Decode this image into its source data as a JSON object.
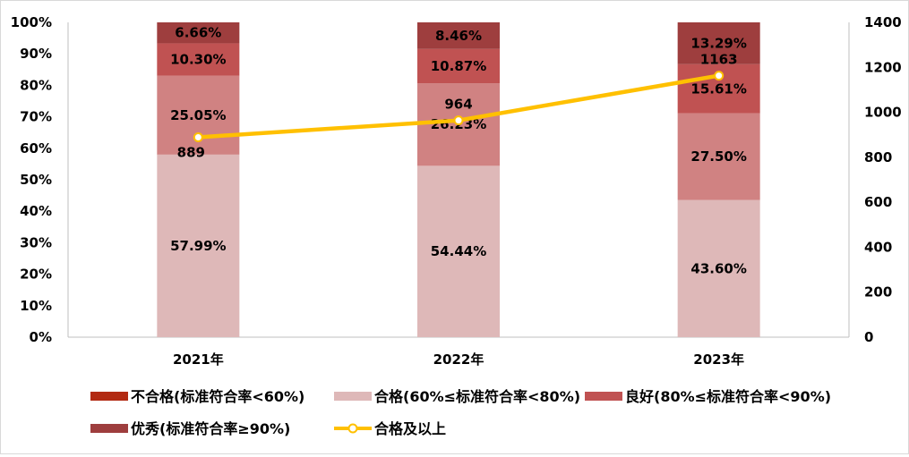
{
  "chart_data": {
    "type": "bar",
    "stacked": true,
    "categories": [
      "2021年",
      "2022年",
      "2023年"
    ],
    "y_left": {
      "ticks": [
        "0%",
        "10%",
        "20%",
        "30%",
        "40%",
        "50%",
        "60%",
        "70%",
        "80%",
        "90%",
        "100%"
      ],
      "range": [
        0,
        100
      ]
    },
    "y_right": {
      "ticks": [
        "0",
        "200",
        "400",
        "600",
        "800",
        "1000",
        "1200",
        "1400"
      ],
      "range": [
        0,
        1400
      ]
    },
    "series": [
      {
        "name": "不合格(标准符合率<60%)",
        "type": "bar",
        "color": "#b22a12",
        "values": [
          0,
          0,
          0
        ],
        "labels": [
          "",
          "",
          ""
        ]
      },
      {
        "name": "合格(60%≤标准符合率<80%)",
        "type": "bar",
        "color": "#deb8b8",
        "values": [
          57.99,
          54.44,
          43.6
        ],
        "labels": [
          "57.99%",
          "54.44%",
          "43.60%"
        ]
      },
      {
        "name": "",
        "type": "bar",
        "color": "#d08282",
        "values": [
          25.05,
          26.23,
          27.5
        ],
        "labels": [
          "25.05%",
          "26.23%",
          "27.50%"
        ]
      },
      {
        "name": "良好(80%≤标准符合率<90%)",
        "type": "bar",
        "color": "#c05252",
        "values": [
          10.3,
          10.87,
          15.61
        ],
        "labels": [
          "10.30%",
          "10.87%",
          "15.61%"
        ]
      },
      {
        "name": "优秀(标准符合率≥90%)",
        "type": "bar",
        "color": "#9e3e3e",
        "values": [
          6.66,
          8.46,
          13.29
        ],
        "labels": [
          "6.66%",
          "8.46%",
          "13.29%"
        ]
      },
      {
        "name": "合格及以上",
        "type": "line",
        "axis": "right",
        "color": "#ffc000",
        "values": [
          889,
          964,
          1163
        ],
        "labels": [
          "889",
          "964",
          "1163"
        ]
      }
    ],
    "legend_position": "bottom",
    "grid": false
  }
}
